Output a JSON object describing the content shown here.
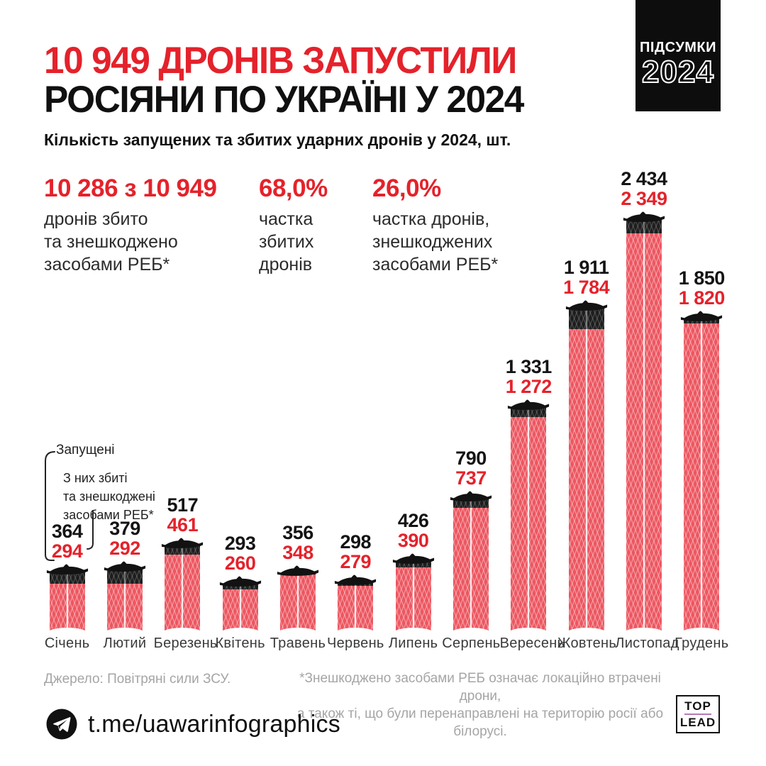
{
  "header": {
    "title_line1": "10 949 ДРОНІВ ЗАПУСТИЛИ",
    "title_line2": "РОСІЯНИ ПО УКРАЇНІ У 2024",
    "badge_line1": "ПІДСУМКИ",
    "badge_line2": "2024",
    "subtitle": "Кількість запущених та збитих ударних дронів у 2024, шт."
  },
  "stats": [
    {
      "value": "10 286 з 10 949",
      "line1": "дронів збито",
      "line2": "та знешкоджено",
      "line3": "засобами РЕБ*"
    },
    {
      "value": "68,0%",
      "line1": "частка",
      "line2": "збитих",
      "line3": "дронів"
    },
    {
      "value": "26,0%",
      "line1": "частка дронів,",
      "line2": "знешкоджених",
      "line3": "засобами РЕБ*"
    }
  ],
  "legend": {
    "launched_label": "Запущені",
    "downed_line1": "З них збиті",
    "downed_line2": "та знешкоджені",
    "downed_line3": "засобами РЕБ*"
  },
  "chart_data": {
    "type": "bar",
    "title": "Кількість запущених та збитих ударних дронів у 2024, шт.",
    "categories": [
      "Січень",
      "Лютий",
      "Березень",
      "Квітень",
      "Травень",
      "Червень",
      "Липень",
      "Серпень",
      "Вересень",
      "Жовтень",
      "Листопад",
      "Грудень"
    ],
    "series": [
      {
        "name": "Запущені",
        "values": [
          364,
          379,
          517,
          293,
          356,
          298,
          426,
          790,
          1331,
          1911,
          2434,
          1850
        ],
        "label_color": "#141414"
      },
      {
        "name": "З них збиті та знешкоджені засобами РЕБ",
        "values": [
          294,
          292,
          461,
          260,
          348,
          279,
          390,
          737,
          1272,
          1784,
          2349,
          1820
        ],
        "label_color": "#e4222b"
      }
    ],
    "display_launched": [
      "364",
      "379",
      "517",
      "293",
      "356",
      "298",
      "426",
      "790",
      "1 331",
      "1 911",
      "2 434",
      "1 850"
    ],
    "display_downed": [
      "294",
      "292",
      "461",
      "260",
      "348",
      "279",
      "390",
      "737",
      "1 272",
      "1 784",
      "2 349",
      "1 820"
    ],
    "ylim": [
      0,
      2500
    ],
    "grid": false,
    "legend_position": "left-annotations",
    "bar_color": "#ec5660",
    "bar_top_color": "#1d1d1d"
  },
  "footer": {
    "source": "Джерело: Повітряні сили ЗСУ.",
    "note_line1": "*Знешкоджено засобами РЕБ означає локаційно втрачені дрони,",
    "note_line2": "а також ті, що були перенаправлені на територію росії або білорусі."
  },
  "bottom": {
    "telegram_handle": "t.me/uawarinfographics",
    "logo_top": "TOP",
    "logo_bottom": "LEAD"
  },
  "colors": {
    "accent_red": "#e4222b",
    "bar_red": "#ec5660",
    "bar_black": "#1d1d1d",
    "footer_gray": "#a5a5a5"
  }
}
